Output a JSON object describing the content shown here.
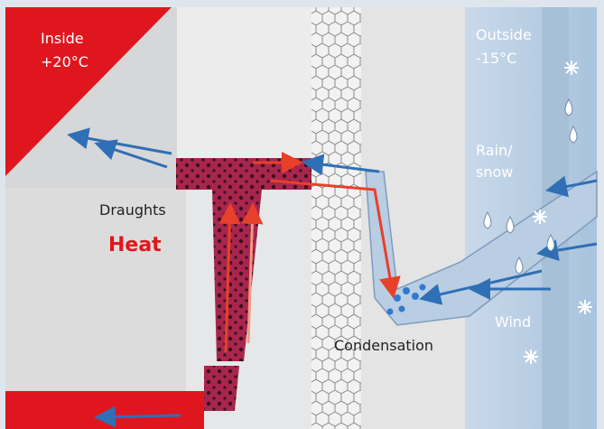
{
  "labels": {
    "inside": "Inside",
    "inside_temp": "+20°C",
    "outside": "Outside",
    "outside_temp": "-15°C",
    "rain_snow": {
      "line1": "Rain/",
      "line2": "snow"
    },
    "draughts": "Draughts",
    "heat": "Heat",
    "wind": "Wind",
    "condensation": "Condensation"
  }
}
